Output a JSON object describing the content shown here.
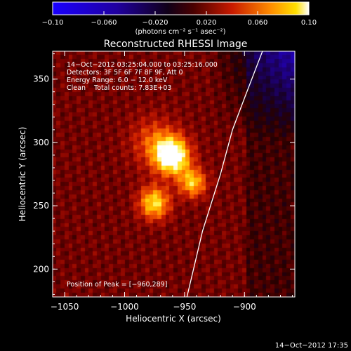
{
  "chart_data": {
    "type": "heatmap",
    "title": "Reconstructed RHESSI Image",
    "xlabel": "Heliocentric X (arcsec)",
    "ylabel": "Heliocentric Y (arcsec)",
    "xlim": [
      -1060,
      -858
    ],
    "ylim": [
      178,
      372
    ],
    "x_ticks": [
      -1050,
      -1000,
      -950,
      -900
    ],
    "x_tick_labels": [
      "−1050",
      "−1000",
      "−950",
      "−900"
    ],
    "y_ticks": [
      200,
      250,
      300,
      350
    ],
    "y_tick_labels": [
      "200",
      "250",
      "300",
      "350"
    ],
    "colorbar": {
      "range": [
        -0.1,
        0.1
      ],
      "ticks": [
        -0.1,
        -0.06,
        -0.02,
        0.02,
        0.06,
        0.1
      ],
      "tick_labels": [
        "−0.10",
        "−0.060",
        "−0.020",
        "0.020",
        "0.060",
        "0.10"
      ],
      "label": "(photons cm⁻² s⁻¹ asec⁻²)",
      "colormap": "blue-black-red-yellow-white"
    },
    "annotations": [
      "14−Oct−2012 03:25:04.000 to 03:25:16.000",
      "Detectors: 3F 5F 6F 7F 8F 9F, Att 0",
      "Energy Range: 6.0 − 12.0 keV",
      "Clean    Total counts: 7.83E+03"
    ],
    "peak_label": "Position of Peak = [−960,289]",
    "sources": [
      {
        "x": -960,
        "y": 289,
        "amplitude": 0.1,
        "sigma": 10
      },
      {
        "x": -943,
        "y": 268,
        "amplitude": 0.062,
        "sigma": 8
      },
      {
        "x": -975,
        "y": 252,
        "amplitude": 0.07,
        "sigma": 9
      },
      {
        "x": -975,
        "y": 300,
        "amplitude": 0.035,
        "sigma": 14
      }
    ],
    "limb_curve": [
      [
        -948,
        178
      ],
      [
        -935,
        230
      ],
      [
        -920,
        275
      ],
      [
        -910,
        310
      ],
      [
        -900,
        335
      ],
      [
        -885,
        372
      ]
    ],
    "grid": false
  },
  "footer": {
    "timestamp": "14−Oct−2012 17:35"
  }
}
